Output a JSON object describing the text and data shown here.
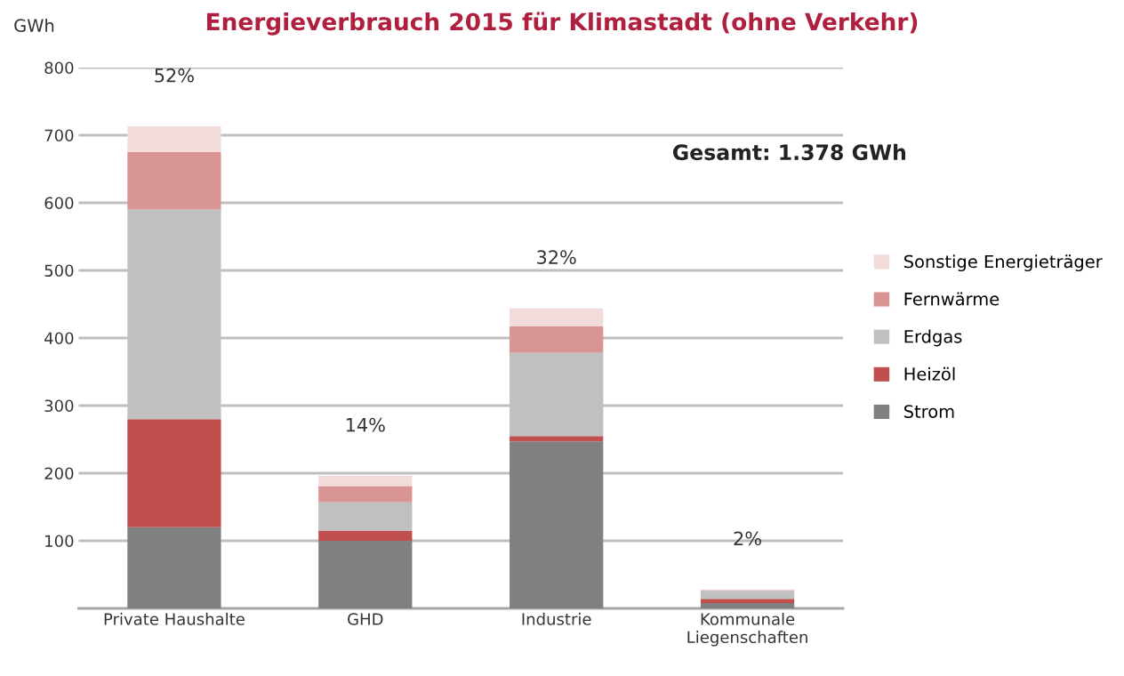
{
  "chart_data": {
    "type": "bar",
    "stacked": true,
    "title": "Energieverbrauch 2015 für Klimastadt (ohne Verkehr)",
    "ylabel": "GWh",
    "categories": [
      "Private Haushalte",
      "GHD",
      "Industrie",
      "Kommunale\nLiegenschaften"
    ],
    "series": [
      {
        "name": "Strom",
        "color": "#808080",
        "values": [
          120,
          100,
          247,
          8
        ]
      },
      {
        "name": "Heizöl",
        "color": "#c0504d",
        "values": [
          160,
          15,
          8,
          6
        ]
      },
      {
        "name": "Erdgas",
        "color": "#c0c0c0",
        "values": [
          310,
          42,
          123,
          12
        ]
      },
      {
        "name": "Fernwärme",
        "color": "#d99594",
        "values": [
          85,
          24,
          39,
          1
        ]
      },
      {
        "name": "Sonstige Energieträger",
        "color": "#f2dcdb",
        "values": [
          38,
          15,
          27,
          1
        ]
      }
    ],
    "ylim": [
      0,
      800
    ],
    "yticks": [
      100,
      200,
      300,
      400,
      500,
      600,
      700,
      800
    ],
    "grid": "y",
    "legend": "right",
    "annotations": [
      "52%",
      "14%",
      "32%",
      "2%",
      "Gesamt: 1.378 GWh"
    ]
  }
}
